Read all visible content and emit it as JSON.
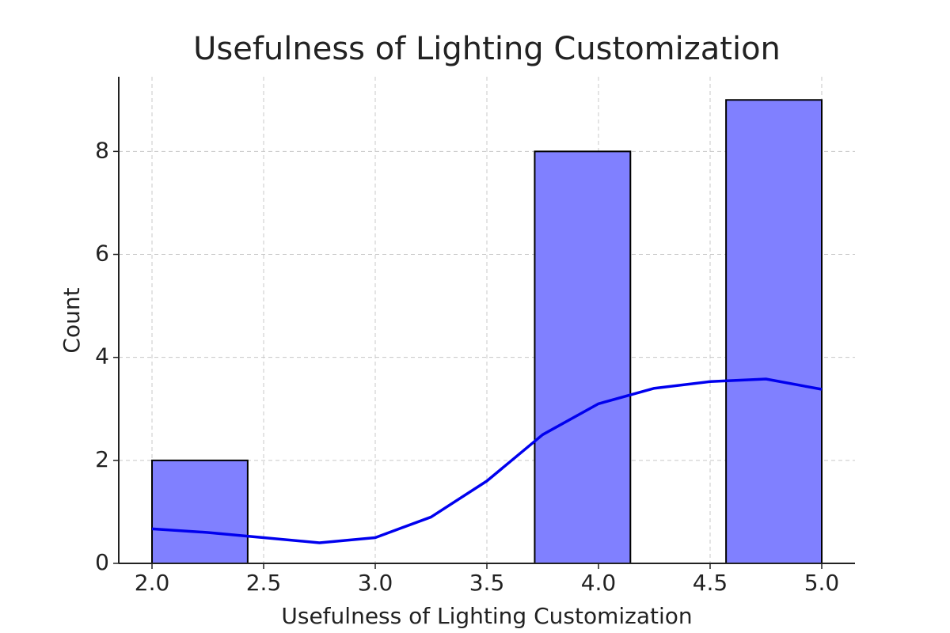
{
  "chart_data": {
    "type": "histogram",
    "title": "Usefulness of Lighting Customization",
    "x_label": "Usefulness of Lighting Customization",
    "y_label": "Count",
    "bins": [
      2.0,
      2.4286,
      2.8571,
      3.2857,
      3.7143,
      4.1429,
      4.5714,
      5.0
    ],
    "counts": [
      2,
      0,
      0,
      0,
      8,
      0,
      9
    ],
    "color": "#8080ff",
    "edge_color": "#000000",
    "kde_x": [
      2.0,
      2.25,
      2.5,
      2.75,
      3.0,
      3.25,
      3.5,
      3.75,
      4.0,
      4.25,
      4.5,
      4.75,
      5.0
    ],
    "kde_y": [
      0.67,
      0.6,
      0.5,
      0.4,
      0.5,
      0.9,
      1.6,
      2.5,
      3.1,
      3.4,
      3.53,
      3.58,
      3.38
    ],
    "kde_color": "#0000ee",
    "xlim": [
      1.851,
      5.149
    ],
    "ylim": [
      0,
      9.45
    ],
    "xticks": [
      {
        "value": 2.0,
        "label": "2.0"
      },
      {
        "value": 2.5,
        "label": "2.5"
      },
      {
        "value": 3.0,
        "label": "3.0"
      },
      {
        "value": 3.5,
        "label": "3.5"
      },
      {
        "value": 4.0,
        "label": "4.0"
      },
      {
        "value": 4.5,
        "label": "4.5"
      },
      {
        "value": 5.0,
        "label": "5.0"
      }
    ],
    "yticks": [
      0,
      2,
      4,
      6,
      8
    ],
    "grid": true
  }
}
